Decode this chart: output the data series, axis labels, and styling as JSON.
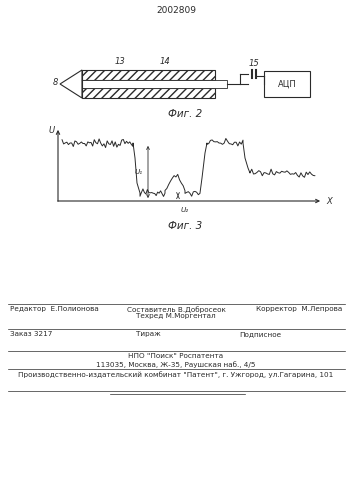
{
  "title": "2002809",
  "fig2_label": "Фиг. 2",
  "fig3_label": "Фиг. 3",
  "bg_color": "#ffffff",
  "line_color": "#2a2a2a",
  "fig2": {
    "arrow_label": "8",
    "label13": "13",
    "label14": "14",
    "label15": "15",
    "adc_label": "АЦП"
  },
  "fig3": {
    "ylabel": "U",
    "xlabel": "X",
    "u1_label": "U₁",
    "u2_label": "U₂"
  },
  "footer": {
    "line1_left": "Редактор  Е.Полионова",
    "line1_center1": "Составитель В.Добросеок",
    "line1_center2": "Техред М.Моргентал",
    "line1_right": "Корректор  М.Лепрова",
    "line2_left": "Заказ 3217",
    "line2_center": "Тираж",
    "line2_right": "Подписное",
    "line3": "НПО \"Поиск\" Роспатента",
    "line4": "113035, Москва, Ж-35, Раушская наб., 4/5",
    "line5": "Производственно-издательский комбинат \"Патент\", г. Ужгород, ул.Гагарина, 101"
  }
}
